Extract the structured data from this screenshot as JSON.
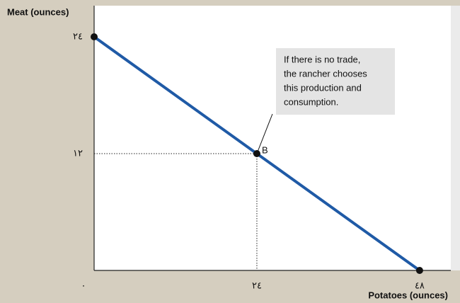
{
  "chart_data": {
    "type": "line",
    "y_label": "Meat (ounces)",
    "x_label": "Potatoes (ounces)",
    "x": [
      0,
      48
    ],
    "series": [
      {
        "color": "#1f5aa6",
        "values": [
          24,
          0
        ]
      }
    ],
    "points": [
      {
        "x": 24,
        "y": 12,
        "label": "B"
      }
    ],
    "annotation": [
      "If there is no trade,",
      "the rancher chooses",
      "this production and",
      "consumption."
    ],
    "xlim": [
      0,
      52.6
    ],
    "ylim": [
      0,
      27.2
    ],
    "xticks": [
      {
        "value": 0,
        "label": "٠"
      },
      {
        "value": 24,
        "label": "٢٤"
      },
      {
        "value": 48,
        "label": "٤٨"
      }
    ],
    "yticks": [
      {
        "value": 12,
        "label": "١٢"
      },
      {
        "value": 24,
        "label": "٢٤"
      }
    ],
    "grid": false
  }
}
